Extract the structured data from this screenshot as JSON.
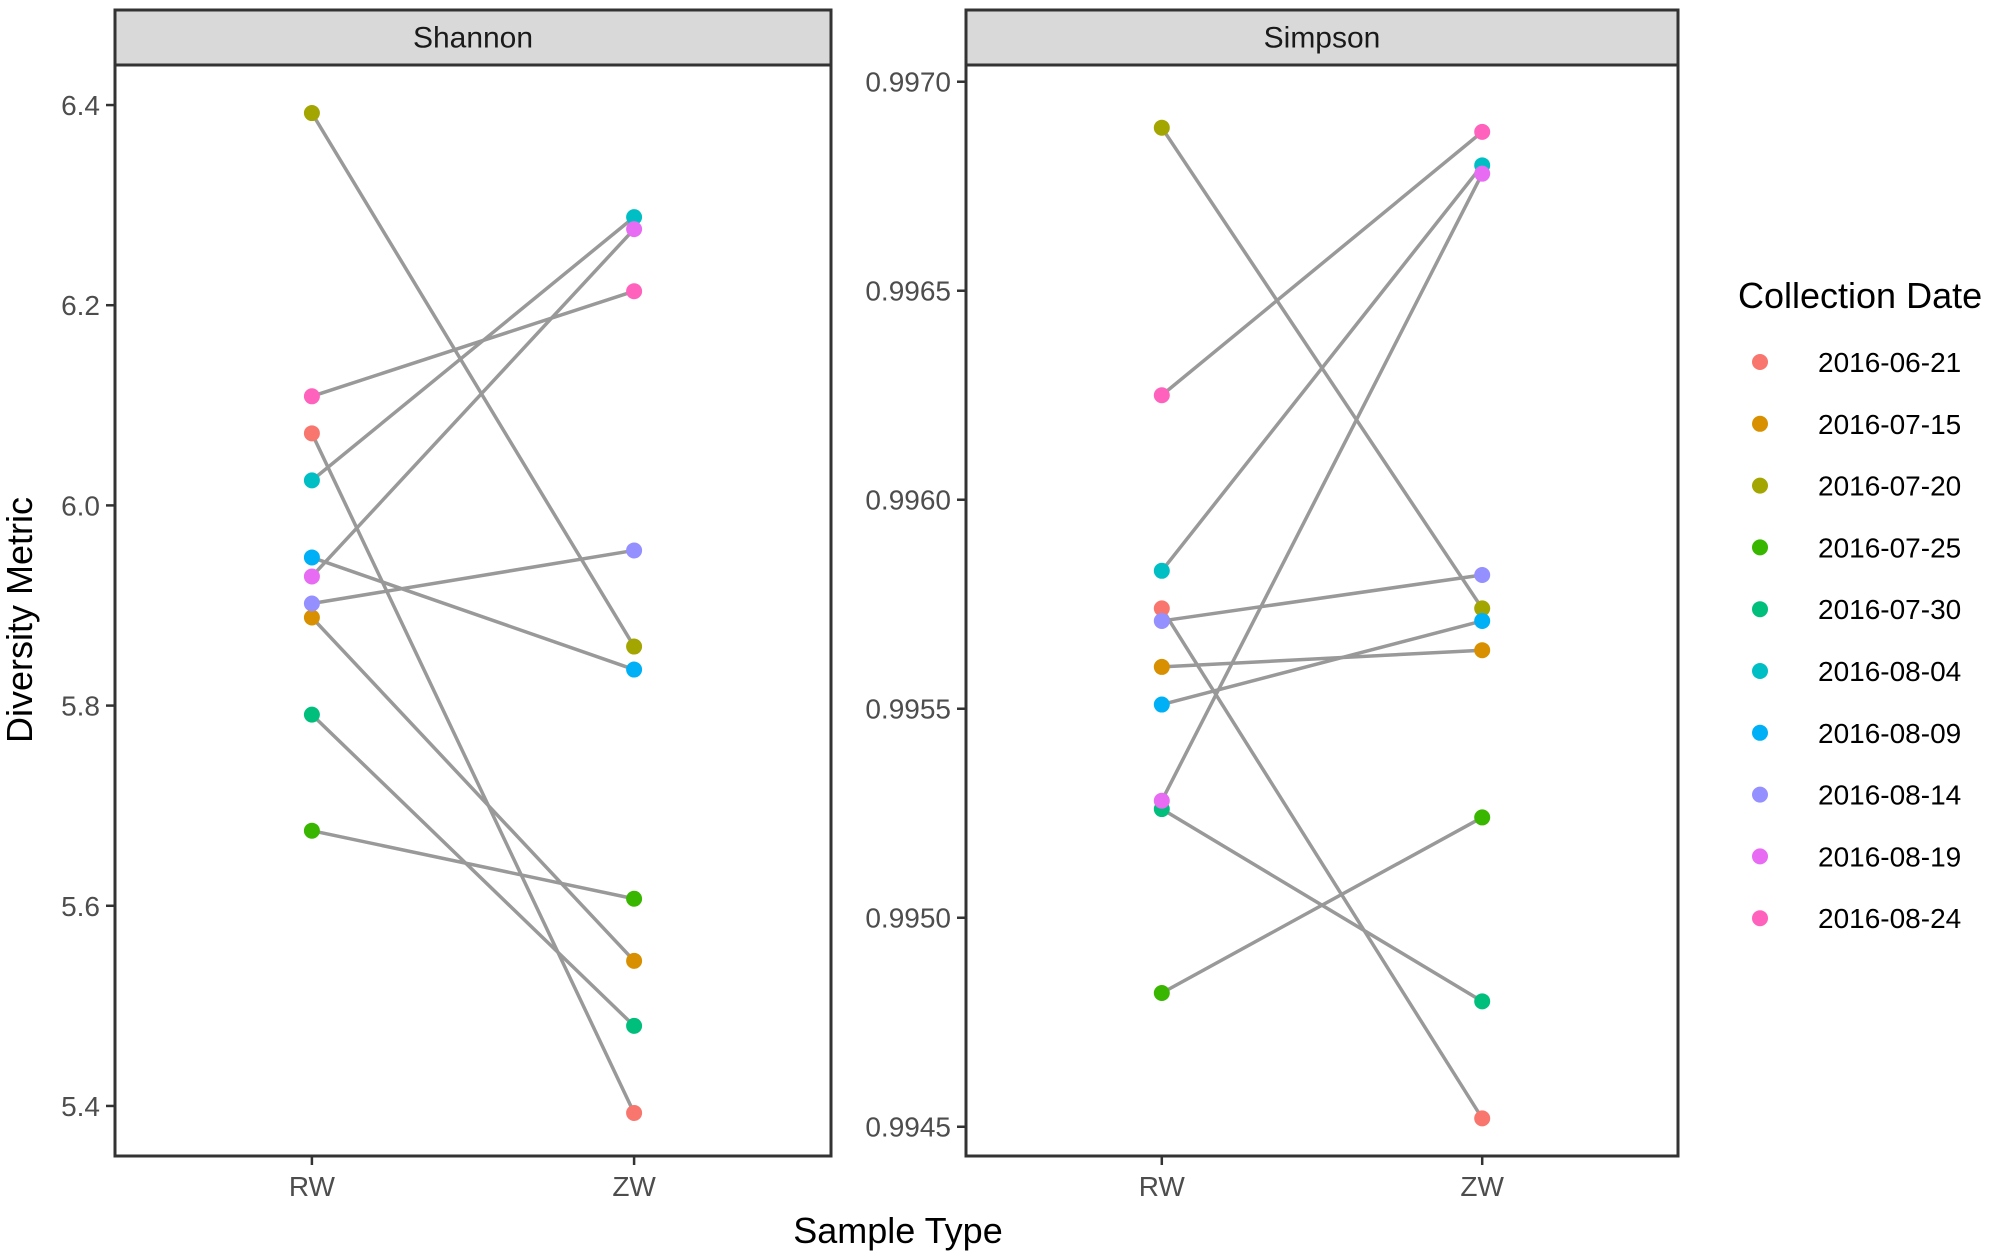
{
  "chart_data": {
    "type": "line",
    "xlabel": "Sample Type",
    "ylabel": "Diversity Metric",
    "legend": {
      "title": "Collection Date",
      "position": "right",
      "entries": [
        {
          "label": "2016-06-21",
          "color": "#F8766D"
        },
        {
          "label": "2016-07-15",
          "color": "#D89000"
        },
        {
          "label": "2016-07-20",
          "color": "#A3A500"
        },
        {
          "label": "2016-07-25",
          "color": "#39B600"
        },
        {
          "label": "2016-07-30",
          "color": "#00BF7D"
        },
        {
          "label": "2016-08-04",
          "color": "#00BFC4"
        },
        {
          "label": "2016-08-09",
          "color": "#00B0F6"
        },
        {
          "label": "2016-08-14",
          "color": "#9590FF"
        },
        {
          "label": "2016-08-19",
          "color": "#E76BF3"
        },
        {
          "label": "2016-08-24",
          "color": "#FF62BC"
        }
      ]
    },
    "line_color": "#999999",
    "panels": [
      {
        "title": "Shannon",
        "categories": [
          "RW",
          "ZW"
        ],
        "ylim": [
          5.35,
          6.44
        ],
        "yticks": [
          5.4,
          5.6,
          5.8,
          6.0,
          6.2,
          6.4
        ],
        "ytick_labels": [
          "5.4",
          "5.6",
          "5.8",
          "6.0",
          "6.2",
          "6.4"
        ],
        "series": [
          {
            "name": "2016-06-21",
            "values": [
              6.072,
              5.393
            ]
          },
          {
            "name": "2016-07-15",
            "values": [
              5.888,
              5.545
            ]
          },
          {
            "name": "2016-07-20",
            "values": [
              6.392,
              5.859
            ]
          },
          {
            "name": "2016-07-25",
            "values": [
              5.675,
              5.607
            ]
          },
          {
            "name": "2016-07-30",
            "values": [
              5.791,
              5.48
            ]
          },
          {
            "name": "2016-08-04",
            "values": [
              6.025,
              6.288
            ]
          },
          {
            "name": "2016-08-09",
            "values": [
              5.948,
              5.836
            ]
          },
          {
            "name": "2016-08-14",
            "values": [
              5.902,
              5.955
            ]
          },
          {
            "name": "2016-08-19",
            "values": [
              5.929,
              6.276
            ]
          },
          {
            "name": "2016-08-24",
            "values": [
              6.109,
              6.214
            ]
          }
        ]
      },
      {
        "title": "Simpson",
        "categories": [
          "RW",
          "ZW"
        ],
        "ylim": [
          0.99443,
          0.99704
        ],
        "yticks": [
          0.9945,
          0.995,
          0.9955,
          0.996,
          0.9965,
          0.997
        ],
        "ytick_labels": [
          "0.9945",
          "0.9950",
          "0.9955",
          "0.9960",
          "0.9965",
          "0.9970"
        ],
        "series": [
          {
            "name": "2016-06-21",
            "values": [
              0.99574,
              0.99452
            ]
          },
          {
            "name": "2016-07-15",
            "values": [
              0.9956,
              0.99564
            ]
          },
          {
            "name": "2016-07-20",
            "values": [
              0.99689,
              0.99574
            ]
          },
          {
            "name": "2016-07-25",
            "values": [
              0.99482,
              0.99524
            ]
          },
          {
            "name": "2016-07-30",
            "values": [
              0.99526,
              0.9948
            ]
          },
          {
            "name": "2016-08-04",
            "values": [
              0.99583,
              0.9968
            ]
          },
          {
            "name": "2016-08-09",
            "values": [
              0.99551,
              0.99571
            ]
          },
          {
            "name": "2016-08-14",
            "values": [
              0.99571,
              0.99582
            ]
          },
          {
            "name": "2016-08-19",
            "values": [
              0.99528,
              0.99678
            ]
          },
          {
            "name": "2016-08-24",
            "values": [
              0.99625,
              0.99688
            ]
          }
        ]
      }
    ]
  }
}
